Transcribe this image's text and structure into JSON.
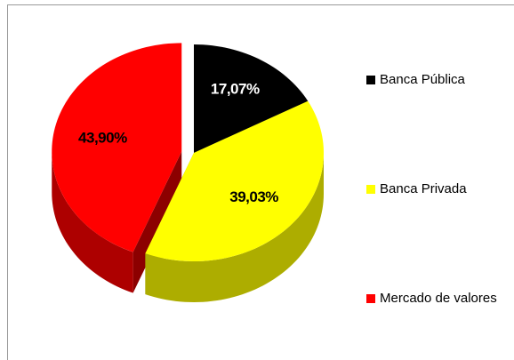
{
  "chart_data": {
    "type": "pie",
    "categories": [
      "Banca Pública",
      "Banca Privada",
      "Mercado de valores"
    ],
    "values": [
      17.07,
      39.03,
      43.9
    ],
    "value_labels": [
      "17,07%",
      "39,03%",
      "43,90%"
    ],
    "colors": [
      "#000000",
      "#ffff00",
      "#ff0000"
    ],
    "label_colors": [
      "#ffffff",
      "#000000",
      "#000000"
    ]
  }
}
